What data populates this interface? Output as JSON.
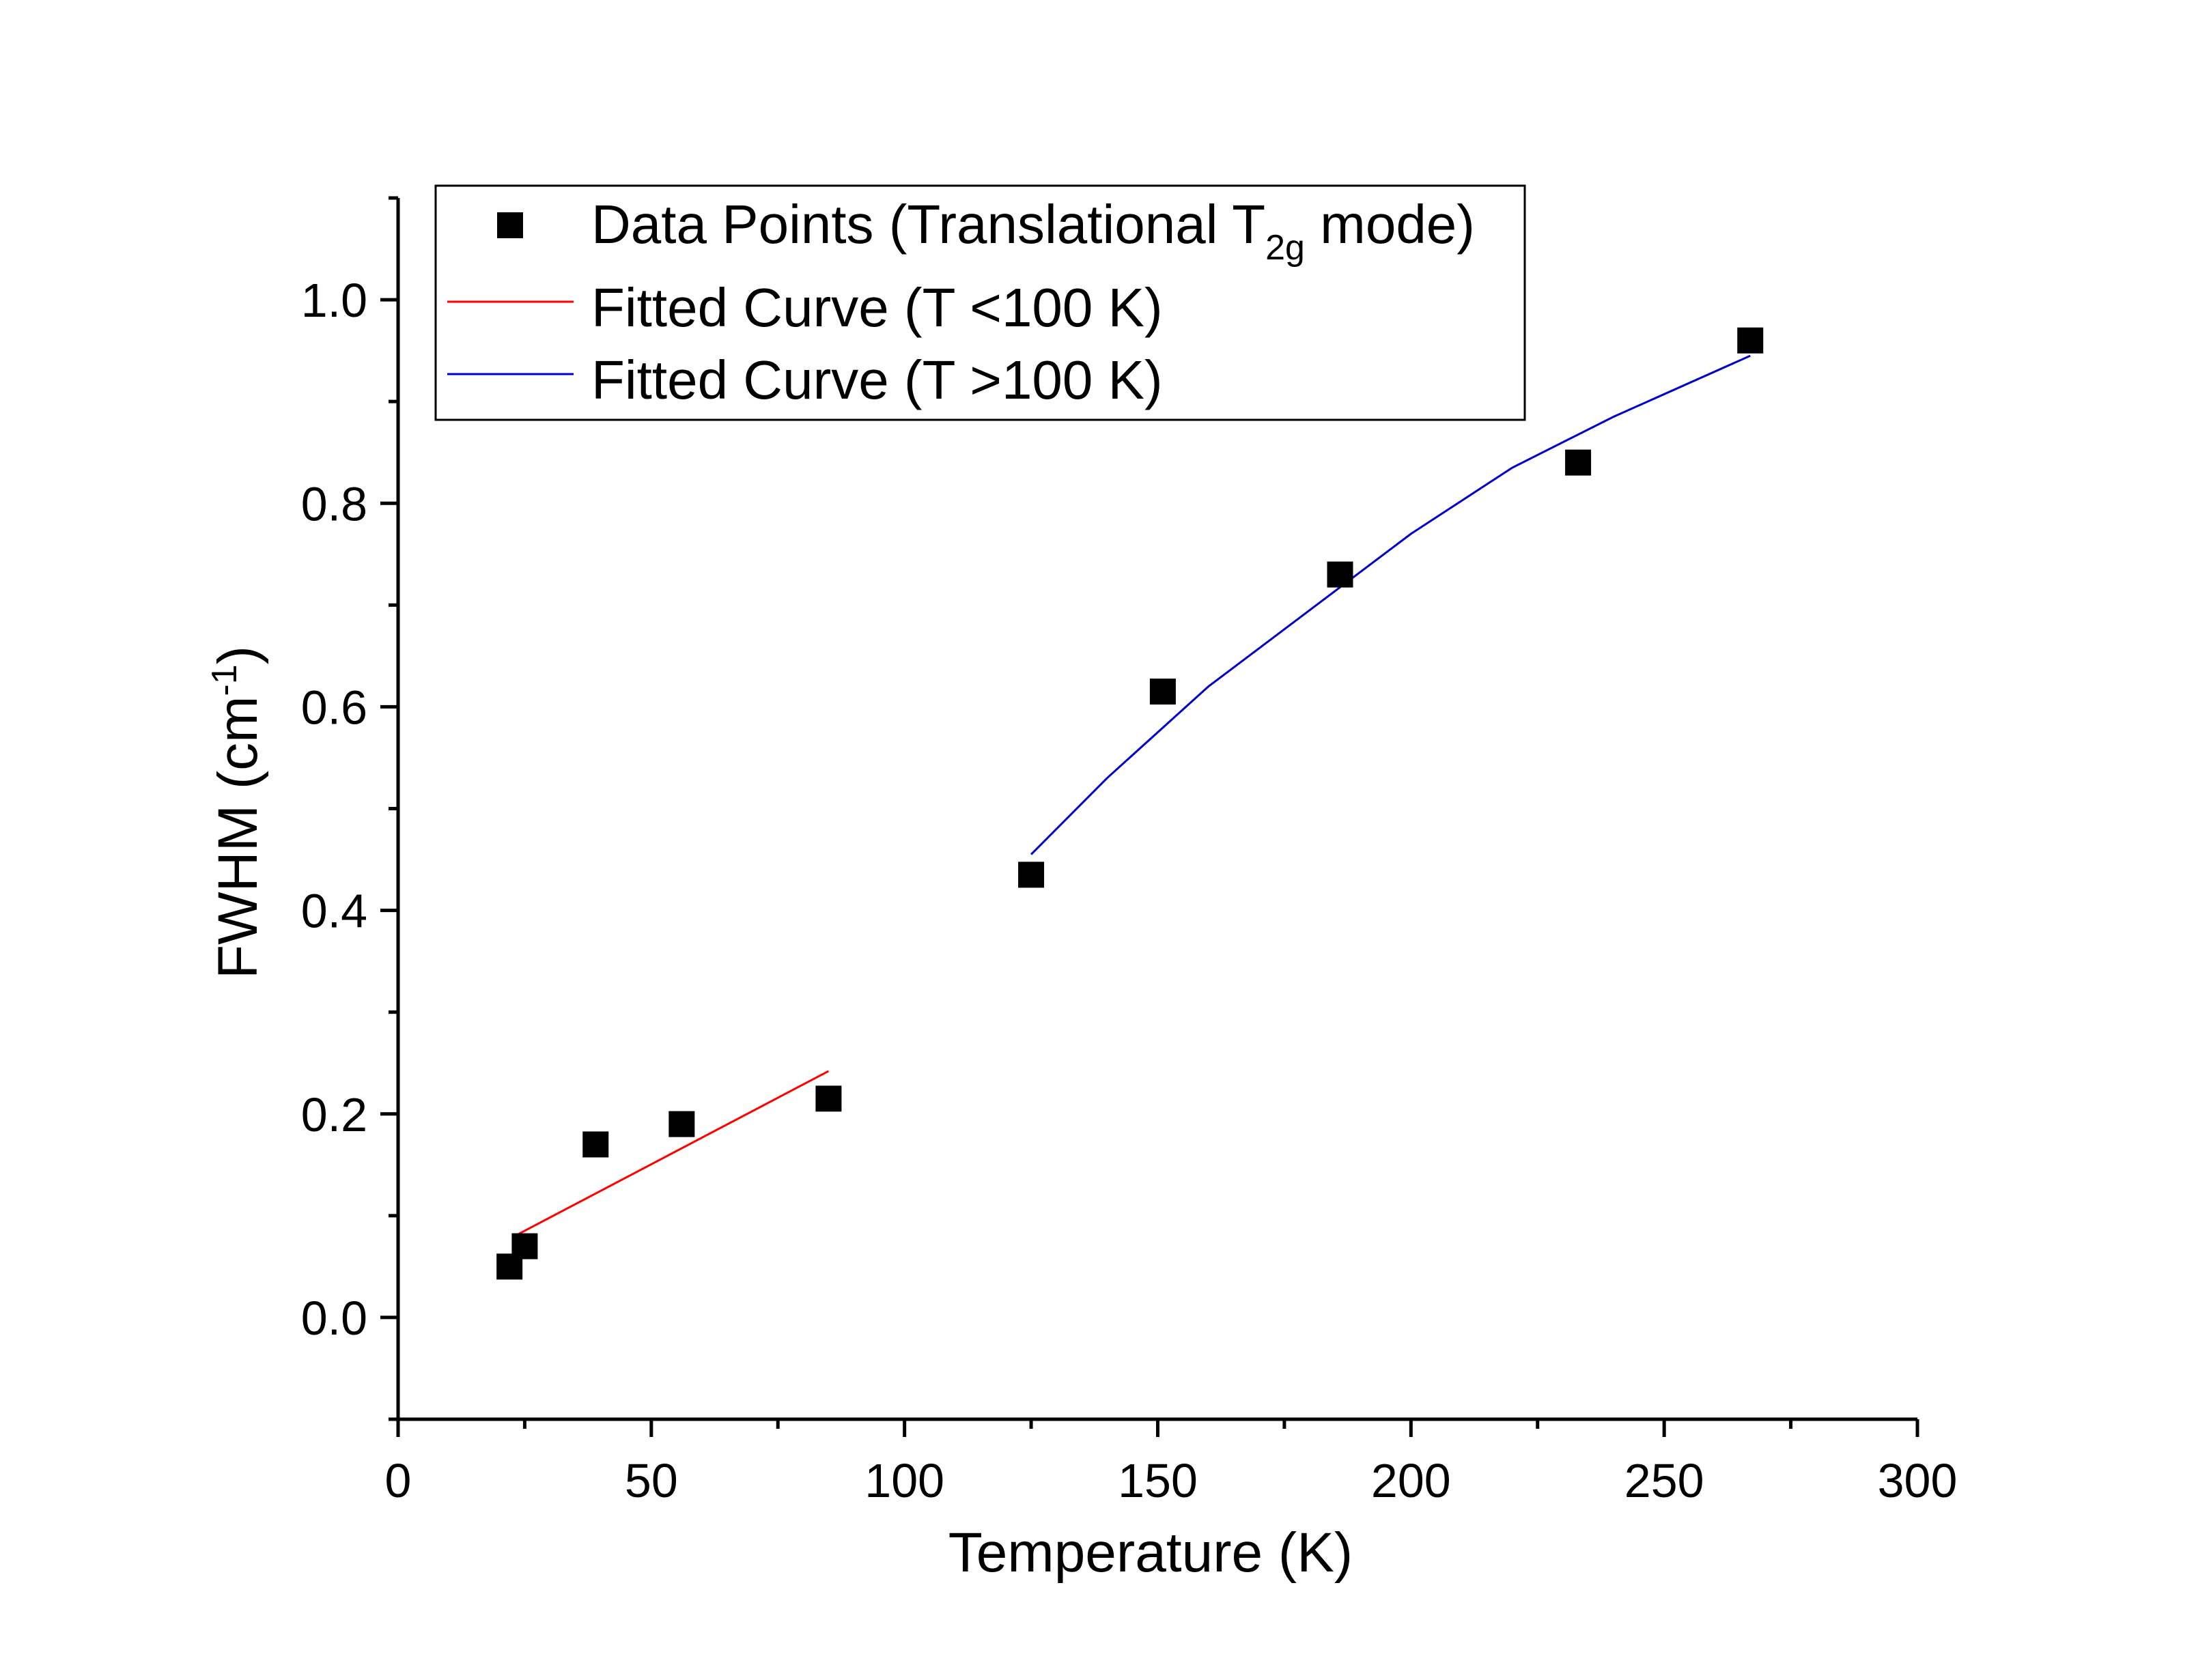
{
  "chart_data": {
    "type": "scatter",
    "title": "",
    "xlabel": "Temperature (K)",
    "ylabel": {
      "base": "FWHM (cm",
      "sup": "-1",
      "tail": ")"
    },
    "xlim": [
      0,
      300
    ],
    "ylim": [
      -0.1,
      1.1
    ],
    "x_ticks": [
      0,
      50,
      100,
      150,
      200,
      250,
      300
    ],
    "x_tick_labels": [
      "0",
      "50",
      "100",
      "150",
      "200",
      "250",
      "300"
    ],
    "y_ticks": [
      0.0,
      0.2,
      0.4,
      0.6,
      0.8,
      1.0
    ],
    "y_tick_labels": [
      "0.0",
      "0.2",
      "0.4",
      "0.6",
      "0.8",
      "1.0"
    ],
    "x_minor_ticks": [
      25,
      75,
      125,
      175,
      225,
      275
    ],
    "y_minor_ticks": [
      -0.1,
      0.1,
      0.3,
      0.5,
      0.7,
      0.9,
      1.1
    ],
    "grid": false,
    "legend_position": "top-left",
    "series": [
      {
        "name": "Data Points (Translational T2g mode)",
        "kind": "scatter",
        "marker": "square",
        "color": "#000000",
        "x": [
          22,
          25,
          39,
          56,
          85,
          125,
          151,
          186,
          233,
          267
        ],
        "y": [
          0.05,
          0.07,
          0.17,
          0.19,
          0.215,
          0.435,
          0.615,
          0.73,
          0.84,
          0.96
        ]
      },
      {
        "name": "Fitted Curve (T <100 K)",
        "kind": "line",
        "color": "#ff0000",
        "x": [
          23,
          85
        ],
        "y": [
          0.08,
          0.242
        ]
      },
      {
        "name": "Fitted Curve (T >100 K)",
        "kind": "line",
        "color": "#0000cc",
        "x": [
          125,
          140,
          160,
          180,
          200,
          220,
          240,
          267
        ],
        "y": [
          0.455,
          0.53,
          0.62,
          0.695,
          0.77,
          0.835,
          0.885,
          0.945
        ]
      }
    ],
    "legend": [
      {
        "base": "Data Points (Translational T",
        "sub": "2g",
        "tail": " mode)",
        "symbol": "square",
        "color": "#000000"
      },
      {
        "base": "Fitted Curve (T <100 K)",
        "sub": "",
        "tail": "",
        "symbol": "line",
        "color": "#ff0000"
      },
      {
        "base": "Fitted Curve (T >100 K)",
        "sub": "",
        "tail": "",
        "symbol": "line",
        "color": "#0000cc"
      }
    ]
  }
}
